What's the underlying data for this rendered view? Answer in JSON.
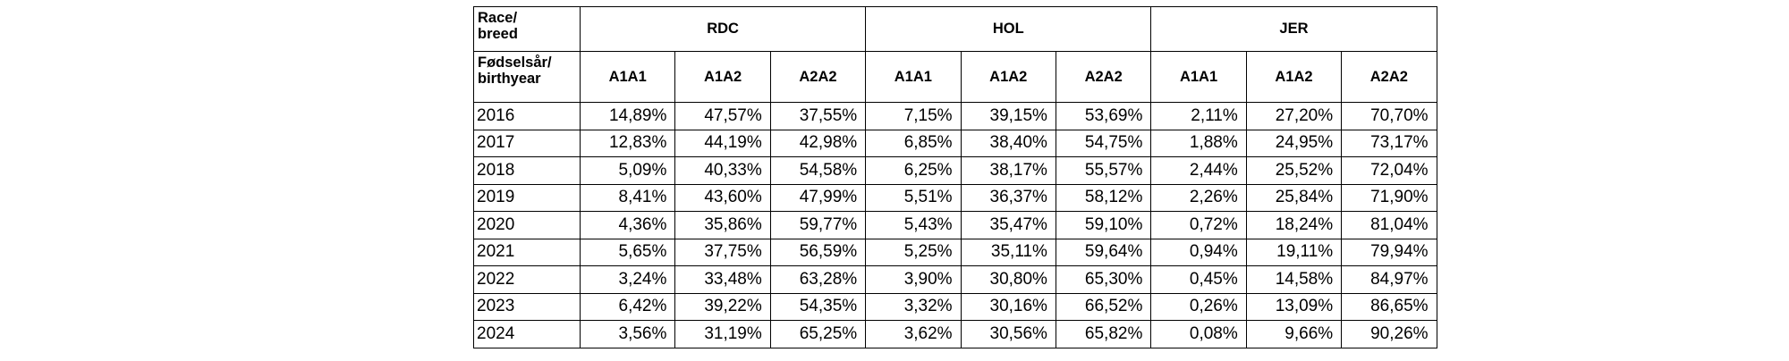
{
  "corner_top": [
    "Race/",
    "breed"
  ],
  "corner_bottom": [
    "Fødselsår/",
    "birthyear"
  ],
  "groups": [
    "RDC",
    "HOL",
    "JER"
  ],
  "genotypes": [
    "A1A1",
    "A1A2",
    "A2A2"
  ],
  "rows": [
    {
      "year": "2016",
      "values": [
        "14,89%",
        "47,57%",
        "37,55%",
        "7,15%",
        "39,15%",
        "53,69%",
        "2,11%",
        "27,20%",
        "70,70%"
      ]
    },
    {
      "year": "2017",
      "values": [
        "12,83%",
        "44,19%",
        "42,98%",
        "6,85%",
        "38,40%",
        "54,75%",
        "1,88%",
        "24,95%",
        "73,17%"
      ]
    },
    {
      "year": "2018",
      "values": [
        "5,09%",
        "40,33%",
        "54,58%",
        "6,25%",
        "38,17%",
        "55,57%",
        "2,44%",
        "25,52%",
        "72,04%"
      ]
    },
    {
      "year": "2019",
      "values": [
        "8,41%",
        "43,60%",
        "47,99%",
        "5,51%",
        "36,37%",
        "58,12%",
        "2,26%",
        "25,84%",
        "71,90%"
      ]
    },
    {
      "year": "2020",
      "values": [
        "4,36%",
        "35,86%",
        "59,77%",
        "5,43%",
        "35,47%",
        "59,10%",
        "0,72%",
        "18,24%",
        "81,04%"
      ]
    },
    {
      "year": "2021",
      "values": [
        "5,65%",
        "37,75%",
        "56,59%",
        "5,25%",
        "35,11%",
        "59,64%",
        "0,94%",
        "19,11%",
        "79,94%"
      ]
    },
    {
      "year": "2022",
      "values": [
        "3,24%",
        "33,48%",
        "63,28%",
        "3,90%",
        "30,80%",
        "65,30%",
        "0,45%",
        "14,58%",
        "84,97%"
      ]
    },
    {
      "year": "2023",
      "values": [
        "6,42%",
        "39,22%",
        "54,35%",
        "3,32%",
        "30,16%",
        "66,52%",
        "0,26%",
        "13,09%",
        "86,65%"
      ]
    },
    {
      "year": "2024",
      "values": [
        "3,56%",
        "31,19%",
        "65,25%",
        "3,62%",
        "30,56%",
        "65,82%",
        "0,08%",
        "9,66%",
        "90,26%"
      ]
    }
  ]
}
